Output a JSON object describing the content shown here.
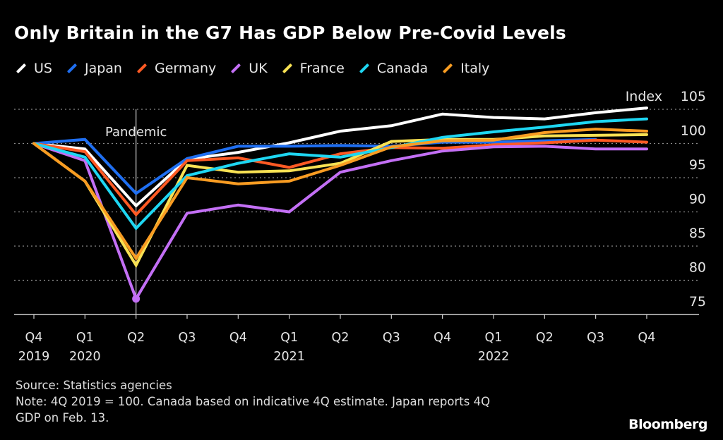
{
  "chart_data": {
    "type": "line",
    "title": "Only Britain in the G7 Has GDP Below Pre-Covid Levels",
    "ylabel": "Index",
    "ylim": [
      75,
      105
    ],
    "yticks": [
      75,
      80,
      85,
      90,
      95,
      100,
      105
    ],
    "grid": true,
    "legend": "top-left",
    "x_quarters": [
      "Q4",
      "Q1",
      "Q2",
      "Q3",
      "Q4",
      "Q1",
      "Q2",
      "Q3",
      "Q4",
      "Q1",
      "Q2",
      "Q3",
      "Q4"
    ],
    "x_years": [
      {
        "label": "2019",
        "index": 0
      },
      {
        "label": "2020",
        "index": 1
      },
      {
        "label": "2021",
        "index": 5
      },
      {
        "label": "2022",
        "index": 9
      }
    ],
    "annotation": {
      "label": "Pandemic",
      "index": 2
    },
    "series": [
      {
        "name": "US",
        "color": "#ffffff",
        "values": [
          100,
          99.2,
          90.9,
          97.7,
          98.7,
          100.1,
          101.8,
          102.6,
          104.3,
          103.8,
          103.6,
          104.5,
          105.2
        ]
      },
      {
        "name": "Japan",
        "color": "#1f6ff2",
        "values": [
          100,
          100.6,
          92.7,
          97.8,
          99.6,
          99.6,
          99.7,
          99.6,
          100.2,
          100.2,
          100.4,
          100.6,
          null
        ]
      },
      {
        "name": "Germany",
        "color": "#ff5a24",
        "values": [
          100,
          98.8,
          89.6,
          97.5,
          97.9,
          96.5,
          98.5,
          99.4,
          99.3,
          99.8,
          100.1,
          100.5,
          100.2
        ]
      },
      {
        "name": "UK",
        "color": "#c36ff5",
        "values": [
          100,
          97.5,
          77.3,
          89.8,
          91.0,
          90.0,
          95.8,
          97.5,
          98.9,
          99.5,
          99.6,
          99.2,
          99.2
        ]
      },
      {
        "name": "France",
        "color": "#f8e153",
        "values": [
          100,
          94.5,
          82.2,
          96.8,
          95.8,
          96.0,
          97.1,
          100.3,
          100.6,
          100.6,
          101.1,
          101.2,
          101.3
        ]
      },
      {
        "name": "Canada",
        "color": "#1ed6f2",
        "values": [
          100,
          98.0,
          87.6,
          95.3,
          97.1,
          98.5,
          98.0,
          99.4,
          100.9,
          101.7,
          102.4,
          103.2,
          103.6
        ]
      },
      {
        "name": "Italy",
        "color": "#f99c22",
        "values": [
          100,
          94.5,
          83.2,
          95.0,
          94.1,
          94.5,
          96.8,
          99.5,
          100.4,
          100.5,
          101.6,
          102.1,
          101.8
        ]
      }
    ]
  },
  "footer": {
    "source": "Source: Statistics agencies",
    "note_line1": "Note: 4Q 2019 = 100. Canada based on indicative 4Q estimate. Japan reports 4Q",
    "note_line2": "GDP on Feb. 13.",
    "logo": "Bloomberg"
  }
}
